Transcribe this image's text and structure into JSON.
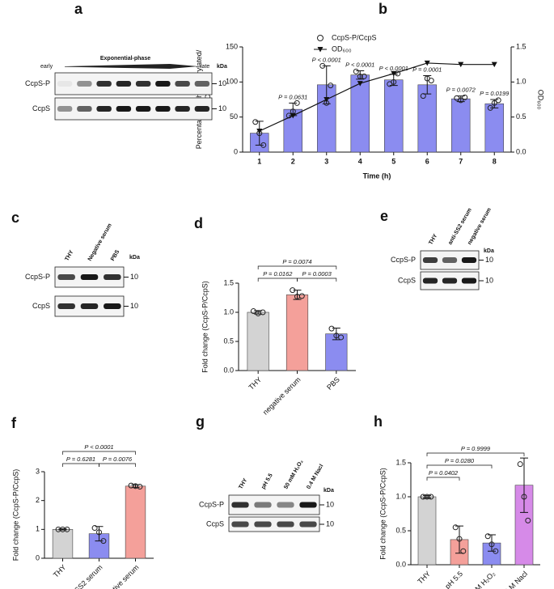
{
  "chart_data": [
    {
      "type": "bar",
      "label": "b",
      "categories": [
        "1",
        "2",
        "3",
        "4",
        "5",
        "6",
        "7",
        "8"
      ],
      "xlabel": "Time (h)",
      "ylabel": [
        "Percentage of phosphorylated/",
        "Total CcpS"
      ],
      "y2label": "OD₆₀₀",
      "ylim": [
        0,
        150
      ],
      "yticks": [
        0,
        50,
        100,
        150
      ],
      "y2lim": [
        0,
        1.5
      ],
      "y2ticks": [
        {
          "value": 0,
          "label": "0.0"
        },
        0.5,
        {
          "value": 1,
          "label": "1.0"
        },
        1.5
      ],
      "series": [
        {
          "name": "CcpS-P/CcpS",
          "color": "#8b8cf0",
          "values": [
            27,
            61,
            96,
            110,
            103,
            96,
            76,
            69
          ],
          "errors": [
            17,
            9,
            27,
            6,
            8,
            13,
            4,
            6
          ],
          "points": [
            [
              43,
              27,
              10
            ],
            [
              52,
              58,
              70
            ],
            [
              123,
              70,
              95
            ],
            [
              115,
              108,
              108
            ],
            [
              97,
              100,
              112
            ],
            [
              80,
              105,
              102
            ],
            [
              77,
              74,
              78
            ],
            [
              63,
              70,
              74
            ]
          ]
        },
        {
          "name": "OD₆₀₀",
          "color": "#111111",
          "axis": "y2",
          "values": [
            0.3,
            0.52,
            0.75,
            0.98,
            1.12,
            1.27,
            1.25,
            1.25
          ]
        }
      ],
      "annotations": [
        null,
        "P = 0.0631",
        "P < 0.0001",
        "P < 0.0001",
        "P < 0.0001",
        "P = 0.0001",
        "P = 0.0072",
        "P = 0.0199"
      ]
    },
    {
      "type": "bar",
      "label": "d",
      "categories": [
        "THY",
        "negative serum",
        "PBS"
      ],
      "ylabel": "Fold change (CcpS-P/CcpS)",
      "ylim": [
        0,
        1.5
      ],
      "yticks": [
        {
          "value": 0,
          "label": "0.0"
        },
        0.5,
        {
          "value": 1,
          "label": "1.0"
        },
        1.5
      ],
      "series": [
        {
          "colors": [
            "#d3d3d3",
            "#f4a09a",
            "#8b8cf0"
          ],
          "values": [
            1.0,
            1.3,
            0.63
          ],
          "errors": [
            0.03,
            0.08,
            0.1
          ],
          "points": [
            [
              1.02,
              0.98,
              1.0
            ],
            [
              1.38,
              1.27,
              1.28
            ],
            [
              0.72,
              0.6,
              0.57
            ]
          ]
        }
      ],
      "comparisons": [
        {
          "from": "THY",
          "to": "negative serum",
          "label": "P = 0.0162"
        },
        {
          "from": "negative serum",
          "to": "PBS",
          "label": "P = 0.0003"
        },
        {
          "from": "THY",
          "to": "PBS",
          "label": "P = 0.0074"
        }
      ]
    },
    {
      "type": "bar",
      "label": "f",
      "categories": [
        "THY",
        "anti-SS2 serum",
        "negative serum"
      ],
      "ylabel": "Fold change (CcpS-P/CcpS)",
      "ylim": [
        0,
        3
      ],
      "yticks": [
        0,
        1,
        2,
        3
      ],
      "series": [
        {
          "colors": [
            "#d3d3d3",
            "#8b8cf0",
            "#f4a09a"
          ],
          "values": [
            1.0,
            0.85,
            2.5
          ],
          "errors": [
            0.02,
            0.25,
            0.05
          ],
          "points": [
            [
              1.0,
              1.0,
              1.0
            ],
            [
              1.05,
              0.9,
              0.6
            ],
            [
              2.52,
              2.5,
              2.48
            ]
          ]
        }
      ],
      "comparisons": [
        {
          "from": "THY",
          "to": "anti-SS2 serum",
          "label": "P = 0.6281"
        },
        {
          "from": "anti-SS2 serum",
          "to": "negative serum",
          "label": "P = 0.0076"
        },
        {
          "from": "THY",
          "to": "negative serum",
          "label": "P < 0.0001"
        }
      ]
    },
    {
      "type": "bar",
      "label": "h",
      "categories": [
        "THY",
        "pH 5.5",
        "50 mM H₂O₂",
        "0.4 M Nacl"
      ],
      "ylabel": "Fold change (CcpS-P/CcpS)",
      "ylim": [
        0,
        1.5
      ],
      "yticks": [
        {
          "value": 0,
          "label": "0.0"
        },
        0.5,
        {
          "value": 1,
          "label": "1.0"
        },
        1.5
      ],
      "series": [
        {
          "colors": [
            "#d3d3d3",
            "#f4a09a",
            "#8b8cf0",
            "#d68ae8"
          ],
          "values": [
            1.0,
            0.37,
            0.32,
            1.17
          ],
          "errors": [
            0.02,
            0.2,
            0.12,
            0.4
          ],
          "points": [
            [
              1.0,
              1.0,
              1.0
            ],
            [
              0.55,
              0.38,
              0.2
            ],
            [
              0.42,
              0.3,
              0.2
            ],
            [
              1.48,
              1.0,
              0.65
            ]
          ]
        }
      ],
      "comparisons": [
        {
          "from": "THY",
          "to": "pH 5.5",
          "label": "P = 0.0402"
        },
        {
          "from": "THY",
          "to": "50 mM H₂O₂",
          "label": "P = 0.0280"
        },
        {
          "from": "THY",
          "to": "0.4 M Nacl",
          "label": "P = 0.9999"
        }
      ]
    }
  ],
  "blots": [
    {
      "label": "a",
      "start": "early",
      "title": "Exponential-phase",
      "end": "late",
      "kda": "kDa",
      "rows": [
        "CcpS-P",
        "CcpS"
      ],
      "markers": [
        "10",
        "10"
      ]
    },
    {
      "label": "c",
      "lanes": [
        "THY",
        "Negative serum",
        "PBS"
      ],
      "kda": "kDa",
      "rows": [
        "CcpS-P",
        "CcpS"
      ],
      "markers": [
        "10",
        "10"
      ]
    },
    {
      "label": "e",
      "lanes": [
        "THY",
        "anti-SS2 serum",
        "negative serum"
      ],
      "kda": "kDa",
      "rows": [
        "CcpS-P",
        "CcpS"
      ],
      "markers": [
        "10",
        "10"
      ]
    },
    {
      "label": "g",
      "lanes": [
        "THY",
        "pH 5.5",
        "50 mM H₂O₂",
        "0.4 M Nacl"
      ],
      "kda": "kDa",
      "rows": [
        "CcpS-P",
        "CcpS"
      ],
      "markers": [
        "10",
        "10"
      ]
    }
  ]
}
